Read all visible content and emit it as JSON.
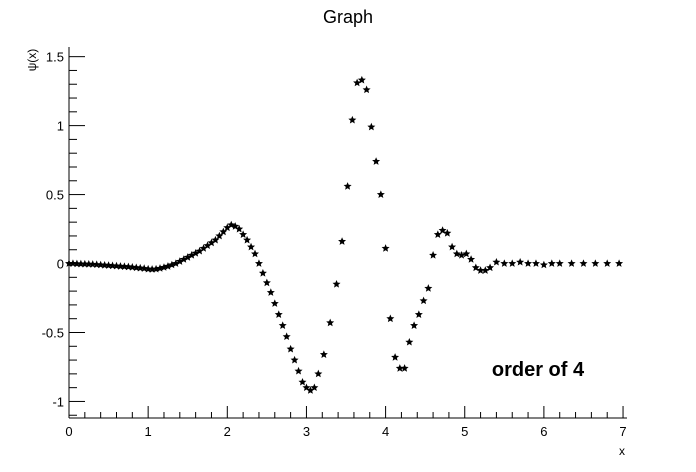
{
  "chart_data": {
    "type": "scatter",
    "title": "Graph",
    "xlabel": "x",
    "ylabel": "ψ(x)",
    "annotation": "order of 4",
    "xlim": [
      0,
      7.05
    ],
    "ylim": [
      -1.12,
      1.57
    ],
    "xticks": [
      0,
      1,
      2,
      3,
      4,
      5,
      6,
      7
    ],
    "yticks": [
      -1,
      -0.5,
      0,
      0.5,
      1,
      1.5
    ],
    "xtick_labels": [
      "0",
      "1",
      "2",
      "3",
      "4",
      "5",
      "6",
      "7"
    ],
    "ytick_labels": [
      "-1",
      "-0.5",
      "0",
      "0.5",
      "1",
      "1.5"
    ],
    "grid": false,
    "marker": "star",
    "marker_color": "#000000",
    "series": [
      {
        "x": [
          0.0,
          0.05,
          0.1,
          0.15,
          0.2,
          0.25,
          0.3,
          0.35,
          0.4,
          0.45,
          0.5,
          0.55,
          0.6,
          0.65,
          0.7,
          0.75,
          0.8,
          0.85,
          0.9,
          0.95,
          1.0,
          1.05,
          1.1,
          1.15,
          1.2,
          1.25,
          1.3,
          1.35,
          1.4,
          1.45,
          1.5,
          1.55,
          1.6,
          1.65,
          1.7,
          1.75,
          1.8,
          1.85,
          1.9,
          1.95,
          2.0,
          2.05,
          2.1,
          2.15,
          2.2,
          2.25,
          2.3,
          2.35,
          2.4,
          2.45,
          2.5,
          2.55,
          2.6,
          2.65,
          2.7,
          2.75,
          2.8,
          2.85,
          2.9,
          2.95,
          3.0,
          3.05,
          3.1,
          3.15,
          3.22,
          3.3,
          3.38,
          3.45,
          3.52,
          3.58,
          3.64,
          3.7,
          3.76,
          3.82,
          3.88,
          3.94,
          4.0,
          4.06,
          4.12,
          4.18,
          4.24,
          4.3,
          4.36,
          4.42,
          4.48,
          4.54,
          4.6,
          4.66,
          4.72,
          4.78,
          4.84,
          4.9,
          4.96,
          5.02,
          5.08,
          5.14,
          5.2,
          5.26,
          5.32,
          5.4,
          5.5,
          5.6,
          5.7,
          5.8,
          5.9,
          6.0,
          6.1,
          6.2,
          6.35,
          6.5,
          6.65,
          6.8,
          6.95
        ],
        "y": [
          0.0,
          0.0,
          -0.002,
          -0.003,
          -0.004,
          -0.005,
          -0.006,
          -0.008,
          -0.01,
          -0.012,
          -0.014,
          -0.016,
          -0.018,
          -0.02,
          -0.022,
          -0.024,
          -0.027,
          -0.03,
          -0.033,
          -0.036,
          -0.04,
          -0.042,
          -0.04,
          -0.035,
          -0.028,
          -0.02,
          -0.01,
          0.0,
          0.015,
          0.03,
          0.045,
          0.06,
          0.075,
          0.09,
          0.11,
          0.13,
          0.15,
          0.17,
          0.2,
          0.23,
          0.26,
          0.28,
          0.27,
          0.25,
          0.21,
          0.17,
          0.12,
          0.07,
          0.0,
          -0.07,
          -0.14,
          -0.21,
          -0.29,
          -0.37,
          -0.45,
          -0.53,
          -0.62,
          -0.7,
          -0.78,
          -0.86,
          -0.9,
          -0.92,
          -0.9,
          -0.8,
          -0.66,
          -0.43,
          -0.15,
          0.16,
          0.56,
          1.04,
          1.31,
          1.33,
          1.26,
          0.99,
          0.74,
          0.5,
          0.11,
          -0.4,
          -0.68,
          -0.76,
          -0.76,
          -0.57,
          -0.45,
          -0.37,
          -0.27,
          -0.18,
          0.06,
          0.21,
          0.24,
          0.22,
          0.12,
          0.07,
          0.06,
          0.07,
          0.03,
          -0.03,
          -0.05,
          -0.05,
          -0.03,
          0.01,
          0.0,
          0.0,
          0.01,
          0.0,
          0.0,
          -0.01,
          0.0,
          0.0,
          0.0,
          0.0,
          0.0,
          0.0,
          0.0
        ]
      }
    ]
  }
}
